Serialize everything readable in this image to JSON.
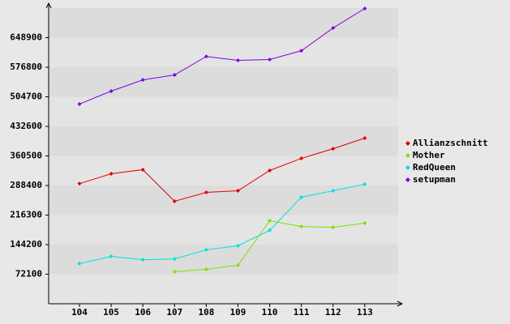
{
  "chart_data": {
    "type": "line",
    "categories": [
      "104",
      "105",
      "106",
      "107",
      "108",
      "109",
      "110",
      "111",
      "112",
      "113"
    ],
    "series": [
      {
        "name": "Allianzschnitt",
        "color": "#e00000",
        "values": [
          293000,
          317000,
          327000,
          250000,
          271500,
          275500,
          325000,
          354500,
          378000,
          404000
        ]
      },
      {
        "name": "Mother",
        "color": "#80e000",
        "values": [
          null,
          null,
          null,
          78000,
          84000,
          94000,
          202500,
          188500,
          186500,
          196500
        ]
      },
      {
        "name": "RedQueen",
        "color": "#00e0e0",
        "values": [
          98000,
          115500,
          107500,
          109500,
          131500,
          141500,
          179000,
          260000,
          275500,
          291500
        ]
      },
      {
        "name": "setupman",
        "color": "#8000e0",
        "values": [
          487000,
          518500,
          546000,
          558000,
          603000,
          593500,
          595500,
          617000,
          672500,
          720000
        ]
      }
    ],
    "ylim": [
      0,
      721000
    ],
    "yticks": [
      72100,
      144200,
      216300,
      288400,
      360500,
      432600,
      504700,
      576800,
      648900
    ],
    "grid": true,
    "legend": "right"
  }
}
